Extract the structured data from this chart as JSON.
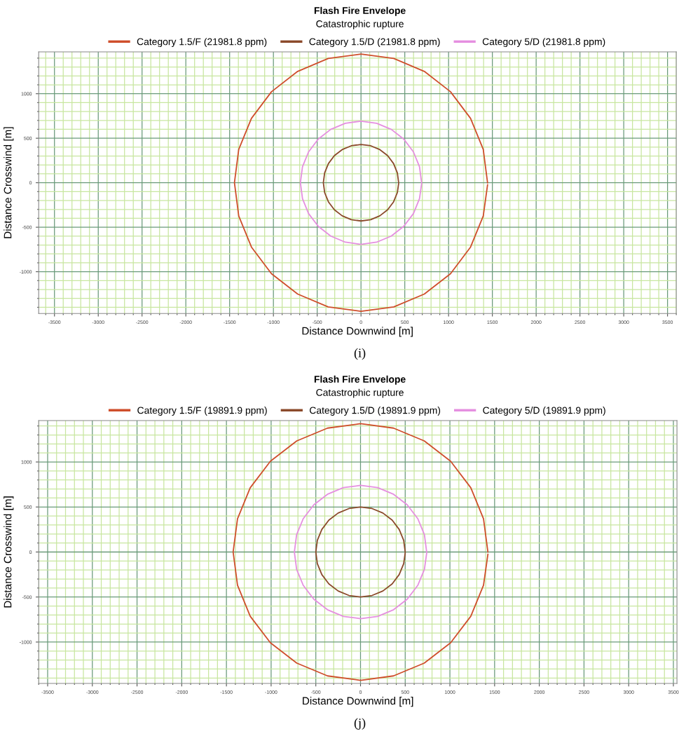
{
  "chart_data": [
    {
      "type": "line",
      "title": "Flash Fire Envelope",
      "subtitle": "Catastrophic rupture",
      "xlabel": "Distance Downwind [m]",
      "ylabel": "Distance Crosswind [m]",
      "xlim": [
        -3680,
        3600
      ],
      "xticks": [
        {
          "value": -3600,
          "label": null
        },
        -3500,
        {
          "value": -3400,
          "label": null
        },
        {
          "value": -3300,
          "label": null
        },
        {
          "value": -3200,
          "label": null
        },
        {
          "value": -3100,
          "label": null
        },
        -3000,
        {
          "value": -2900,
          "label": null
        },
        {
          "value": -2800,
          "label": null
        },
        {
          "value": -2700,
          "label": null
        },
        {
          "value": -2600,
          "label": null
        },
        -2500,
        {
          "value": -2400,
          "label": null
        },
        {
          "value": -2300,
          "label": null
        },
        {
          "value": -2200,
          "label": null
        },
        {
          "value": -2100,
          "label": null
        },
        -2000,
        {
          "value": -1900,
          "label": null
        },
        {
          "value": -1800,
          "label": null
        },
        {
          "value": -1700,
          "label": null
        },
        {
          "value": -1600,
          "label": null
        },
        -1500,
        {
          "value": -1400,
          "label": null
        },
        {
          "value": -1300,
          "label": null
        },
        {
          "value": -1200,
          "label": null
        },
        {
          "value": -1100,
          "label": null
        },
        -1000,
        {
          "value": -900,
          "label": null
        },
        {
          "value": -800,
          "label": null
        },
        {
          "value": -700,
          "label": null
        },
        {
          "value": -600,
          "label": null
        },
        -500,
        {
          "value": -400,
          "label": null
        },
        {
          "value": -300,
          "label": null
        },
        {
          "value": -200,
          "label": null
        },
        {
          "value": -100,
          "label": null
        },
        0,
        {
          "value": 100,
          "label": null
        },
        {
          "value": 200,
          "label": null
        },
        {
          "value": 300,
          "label": null
        },
        {
          "value": 400,
          "label": null
        },
        500,
        {
          "value": 600,
          "label": null
        },
        {
          "value": 700,
          "label": null
        },
        {
          "value": 800,
          "label": null
        },
        {
          "value": 900,
          "label": null
        },
        1000,
        {
          "value": 1100,
          "label": null
        },
        {
          "value": 1200,
          "label": null
        },
        {
          "value": 1300,
          "label": null
        },
        {
          "value": 1400,
          "label": null
        },
        1500,
        {
          "value": 1600,
          "label": null
        },
        {
          "value": 1700,
          "label": null
        },
        {
          "value": 1800,
          "label": null
        },
        {
          "value": 1900,
          "label": null
        },
        2000,
        {
          "value": 2100,
          "label": null
        },
        {
          "value": 2200,
          "label": null
        },
        {
          "value": 2300,
          "label": null
        },
        {
          "value": 2400,
          "label": null
        },
        2500,
        {
          "value": 2600,
          "label": null
        },
        {
          "value": 2700,
          "label": null
        },
        {
          "value": 2800,
          "label": null
        },
        {
          "value": 2900,
          "label": null
        },
        3000,
        {
          "value": 3100,
          "label": null
        },
        {
          "value": 3200,
          "label": null
        },
        {
          "value": 3300,
          "label": null
        },
        {
          "value": 3400,
          "label": null
        },
        3500,
        {
          "value": 3600,
          "label": null
        }
      ],
      "ylim": [
        -1470,
        1470
      ],
      "yticks": [
        {
          "value": -1400,
          "label": null
        },
        {
          "value": -1300,
          "label": null
        },
        {
          "value": -1200,
          "label": null
        },
        {
          "value": -1100,
          "label": null
        },
        -1000,
        {
          "value": -900,
          "label": null
        },
        {
          "value": -800,
          "label": null
        },
        {
          "value": -700,
          "label": null
        },
        {
          "value": -600,
          "label": null
        },
        -500,
        {
          "value": -400,
          "label": null
        },
        {
          "value": -300,
          "label": null
        },
        {
          "value": -200,
          "label": null
        },
        {
          "value": -100,
          "label": null
        },
        0,
        {
          "value": 100,
          "label": null
        },
        {
          "value": 200,
          "label": null
        },
        {
          "value": 300,
          "label": null
        },
        {
          "value": 400,
          "label": null
        },
        500,
        {
          "value": 600,
          "label": null
        },
        {
          "value": 700,
          "label": null
        },
        {
          "value": 800,
          "label": null
        },
        {
          "value": 900,
          "label": null
        },
        1000,
        {
          "value": 1100,
          "label": null
        },
        {
          "value": 1200,
          "label": null
        },
        {
          "value": 1300,
          "label": null
        },
        {
          "value": 1400,
          "label": null
        }
      ],
      "grid": true,
      "legend": "top",
      "marker": "none",
      "line_style": "solid",
      "annotations": [
        "(i)"
      ],
      "series": [
        {
          "name": "Category 1.5/F (21981.8 ppm)",
          "color": "#cf4f2c",
          "x": [
            1445,
            1396,
            1251,
            1022,
            723,
            374,
            0,
            -374,
            -723,
            -1022,
            -1251,
            -1396,
            -1445,
            -1396,
            -1251,
            -1022,
            -723,
            -374,
            0,
            374,
            723,
            1022,
            1251,
            1396,
            1445
          ],
          "values": [
            0,
            374,
            723,
            1022,
            1251,
            1396,
            1445,
            1396,
            1251,
            1022,
            723,
            374,
            0,
            -374,
            -723,
            -1022,
            -1251,
            -1396,
            -1445,
            -1396,
            -1251,
            -1022,
            -723,
            -374,
            -25
          ]
        },
        {
          "name": "Category 1.5/D (21981.8 ppm)",
          "color": "#8b4a2b",
          "x": [
            430,
            415,
            372,
            304,
            215,
            111,
            0,
            -111,
            -215,
            -304,
            -372,
            -415,
            -430,
            -415,
            -372,
            -304,
            -215,
            -111,
            0,
            111,
            215,
            304,
            372,
            415,
            430
          ],
          "values": [
            0,
            111,
            215,
            304,
            372,
            415,
            430,
            415,
            372,
            304,
            215,
            111,
            0,
            -111,
            -215,
            -304,
            -372,
            -415,
            -430,
            -415,
            -372,
            -304,
            -215,
            -111,
            -8
          ]
        },
        {
          "name": "Category 5/D (21981.8 ppm)",
          "color": "#e58fe0",
          "x": [
            692,
            668,
            599,
            489,
            346,
            179,
            0,
            -179,
            -346,
            -489,
            -599,
            -668,
            -692,
            -668,
            -599,
            -489,
            -346,
            -179,
            0,
            179,
            346,
            489,
            599,
            668,
            692
          ],
          "values": [
            0,
            179,
            346,
            489,
            599,
            668,
            692,
            668,
            599,
            489,
            346,
            179,
            0,
            -179,
            -346,
            -489,
            -599,
            -668,
            -692,
            -668,
            -599,
            -489,
            -346,
            -179,
            -12
          ]
        }
      ]
    },
    {
      "type": "line",
      "title": "Flash Fire Envelope",
      "subtitle": "Catastrophic rupture",
      "xlabel": "Distance Downwind [m]",
      "ylabel": "Distance Crosswind [m]",
      "xlim": [
        -3600,
        3540
      ],
      "xticks": [
        {
          "value": -3600,
          "label": null
        },
        -3500,
        {
          "value": -3400,
          "label": null
        },
        {
          "value": -3300,
          "label": null
        },
        {
          "value": -3200,
          "label": null
        },
        {
          "value": -3100,
          "label": null
        },
        -3000,
        {
          "value": -2900,
          "label": null
        },
        {
          "value": -2800,
          "label": null
        },
        {
          "value": -2700,
          "label": null
        },
        {
          "value": -2600,
          "label": null
        },
        -2500,
        {
          "value": -2400,
          "label": null
        },
        {
          "value": -2300,
          "label": null
        },
        {
          "value": -2200,
          "label": null
        },
        {
          "value": -2100,
          "label": null
        },
        -2000,
        {
          "value": -1900,
          "label": null
        },
        {
          "value": -1800,
          "label": null
        },
        {
          "value": -1700,
          "label": null
        },
        {
          "value": -1600,
          "label": null
        },
        -1500,
        {
          "value": -1400,
          "label": null
        },
        {
          "value": -1300,
          "label": null
        },
        {
          "value": -1200,
          "label": null
        },
        {
          "value": -1100,
          "label": null
        },
        -1000,
        {
          "value": -900,
          "label": null
        },
        {
          "value": -800,
          "label": null
        },
        {
          "value": -700,
          "label": null
        },
        {
          "value": -600,
          "label": null
        },
        -500,
        {
          "value": -400,
          "label": null
        },
        {
          "value": -300,
          "label": null
        },
        {
          "value": -200,
          "label": null
        },
        {
          "value": -100,
          "label": null
        },
        0,
        {
          "value": 100,
          "label": null
        },
        {
          "value": 200,
          "label": null
        },
        {
          "value": 300,
          "label": null
        },
        {
          "value": 400,
          "label": null
        },
        500,
        {
          "value": 600,
          "label": null
        },
        {
          "value": 700,
          "label": null
        },
        {
          "value": 800,
          "label": null
        },
        {
          "value": 900,
          "label": null
        },
        1000,
        {
          "value": 1100,
          "label": null
        },
        {
          "value": 1200,
          "label": null
        },
        {
          "value": 1300,
          "label": null
        },
        {
          "value": 1400,
          "label": null
        },
        1500,
        {
          "value": 1600,
          "label": null
        },
        {
          "value": 1700,
          "label": null
        },
        {
          "value": 1800,
          "label": null
        },
        {
          "value": 1900,
          "label": null
        },
        2000,
        {
          "value": 2100,
          "label": null
        },
        {
          "value": 2200,
          "label": null
        },
        {
          "value": 2300,
          "label": null
        },
        {
          "value": 2400,
          "label": null
        },
        2500,
        {
          "value": 2600,
          "label": null
        },
        {
          "value": 2700,
          "label": null
        },
        {
          "value": 2800,
          "label": null
        },
        {
          "value": 2900,
          "label": null
        },
        3000,
        {
          "value": 3100,
          "label": null
        },
        {
          "value": 3200,
          "label": null
        },
        {
          "value": 3300,
          "label": null
        },
        {
          "value": 3400,
          "label": null
        },
        3500
      ],
      "ylim": [
        -1460,
        1460
      ],
      "yticks": [
        {
          "value": -1400,
          "label": null
        },
        {
          "value": -1300,
          "label": null
        },
        {
          "value": -1200,
          "label": null
        },
        {
          "value": -1100,
          "label": null
        },
        -1000,
        {
          "value": -900,
          "label": null
        },
        {
          "value": -800,
          "label": null
        },
        {
          "value": -700,
          "label": null
        },
        {
          "value": -600,
          "label": null
        },
        -500,
        {
          "value": -400,
          "label": null
        },
        {
          "value": -300,
          "label": null
        },
        {
          "value": -200,
          "label": null
        },
        {
          "value": -100,
          "label": null
        },
        0,
        {
          "value": 100,
          "label": null
        },
        {
          "value": 200,
          "label": null
        },
        {
          "value": 300,
          "label": null
        },
        {
          "value": 400,
          "label": null
        },
        500,
        {
          "value": 600,
          "label": null
        },
        {
          "value": 700,
          "label": null
        },
        {
          "value": 800,
          "label": null
        },
        {
          "value": 900,
          "label": null
        },
        1000,
        {
          "value": 1100,
          "label": null
        },
        {
          "value": 1200,
          "label": null
        },
        {
          "value": 1300,
          "label": null
        },
        {
          "value": 1400,
          "label": null
        }
      ],
      "grid": true,
      "legend": "top",
      "marker": "none",
      "line_style": "solid",
      "annotations": [
        "(j)"
      ],
      "series": [
        {
          "name": "Category 1.5/F (19891.9 ppm)",
          "color": "#cf4f2c",
          "x": [
            1425,
            1376,
            1234,
            1008,
            713,
            369,
            0,
            -369,
            -713,
            -1008,
            -1234,
            -1376,
            -1425,
            -1376,
            -1234,
            -1008,
            -713,
            -369,
            0,
            369,
            713,
            1008,
            1234,
            1376,
            1425
          ],
          "values": [
            0,
            369,
            713,
            1008,
            1234,
            1376,
            1425,
            1376,
            1234,
            1008,
            713,
            369,
            0,
            -369,
            -713,
            -1008,
            -1234,
            -1376,
            -1425,
            -1376,
            -1234,
            -1008,
            -713,
            -369,
            -25
          ]
        },
        {
          "name": "Category 1.5/D (19891.9 ppm)",
          "color": "#8b4a2b",
          "x": [
            500,
            483,
            433,
            354,
            250,
            129,
            0,
            -129,
            -250,
            -354,
            -433,
            -483,
            -500,
            -483,
            -433,
            -354,
            -250,
            -129,
            0,
            129,
            250,
            354,
            433,
            483,
            500
          ],
          "values": [
            0,
            129,
            250,
            354,
            433,
            483,
            500,
            483,
            433,
            354,
            250,
            129,
            0,
            -129,
            -250,
            -354,
            -433,
            -483,
            -500,
            -483,
            -433,
            -354,
            -250,
            -129,
            -9
          ]
        },
        {
          "name": "Category 5/D (19891.9 ppm)",
          "color": "#e58fe0",
          "x": [
            740,
            715,
            641,
            523,
            370,
            192,
            0,
            -192,
            -370,
            -523,
            -641,
            -715,
            -740,
            -715,
            -641,
            -523,
            -370,
            -192,
            0,
            192,
            370,
            523,
            641,
            715,
            740
          ],
          "values": [
            0,
            192,
            370,
            523,
            641,
            715,
            740,
            715,
            641,
            523,
            370,
            192,
            0,
            -192,
            -370,
            -523,
            -641,
            -715,
            -740,
            -715,
            -641,
            -523,
            -370,
            -192,
            -13
          ]
        }
      ]
    }
  ]
}
